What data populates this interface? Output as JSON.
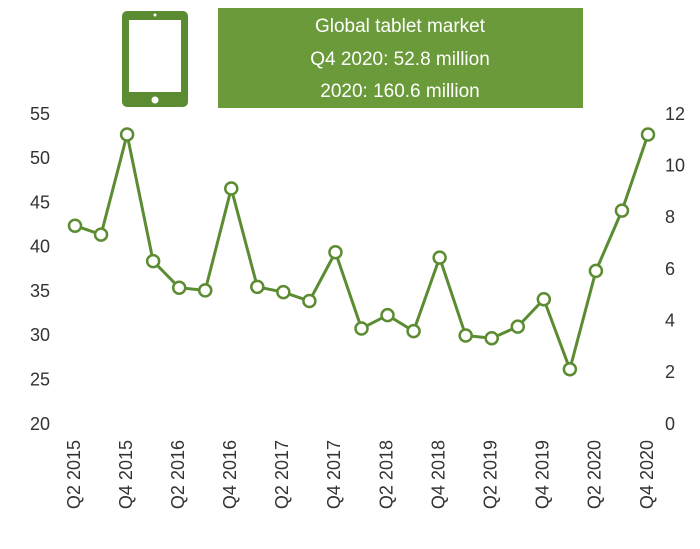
{
  "chart_data": {
    "type": "line",
    "annotation": [
      "Global tablet market",
      "Q4 2020: 52.8 million",
      "2020: 160.6 million"
    ],
    "categories": [
      "Q2 2015",
      null,
      "Q4 2015",
      null,
      "Q2 2016",
      null,
      "Q4 2016",
      null,
      "Q2 2017",
      null,
      "Q4 2017",
      null,
      "Q2 2018",
      null,
      "Q4 2018",
      null,
      "Q2 2019",
      null,
      "Q4 2019",
      null,
      "Q2 2020",
      null,
      "Q4 2020"
    ],
    "series": [
      {
        "color": "#5b8c32",
        "values": [
          42.5,
          41.5,
          52.8,
          38.5,
          35.5,
          35.2,
          46.7,
          35.6,
          35.0,
          34.0,
          39.5,
          30.9,
          32.4,
          30.6,
          38.9,
          30.1,
          29.8,
          31.1,
          34.2,
          26.3,
          37.4,
          44.2,
          52.8
        ]
      }
    ],
    "ylim": [
      20,
      55
    ],
    "yticks": [
      20,
      25,
      30,
      35,
      40,
      45,
      50,
      55
    ],
    "y2lim": [
      0,
      12
    ],
    "y2ticks": [
      0,
      2,
      4,
      6,
      8,
      10,
      12
    ],
    "box_color": "#6a9a3a"
  }
}
